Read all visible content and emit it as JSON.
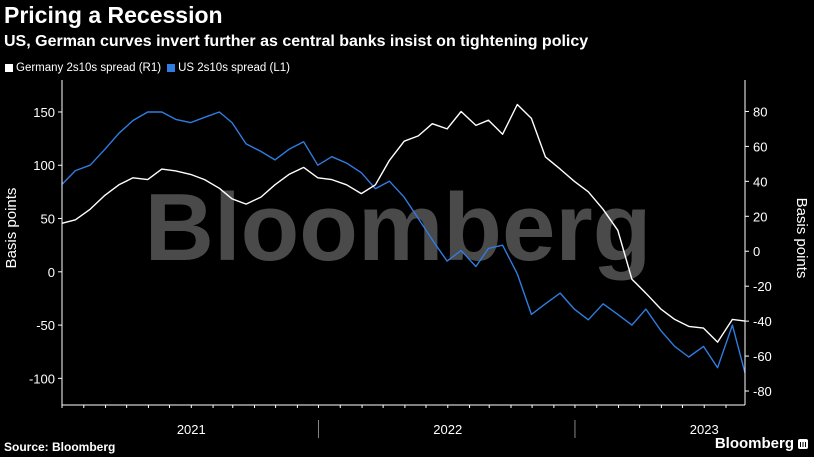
{
  "title": "Pricing a Recession",
  "subtitle": "US, German curves invert further as central banks insist on tightening policy",
  "source": "Source: Bloomberg",
  "brand": "Bloomberg",
  "watermark": "Bloomberg",
  "colors": {
    "germany": "#ffffff",
    "us": "#2f7de1",
    "background": "#000000",
    "watermark": "#4a4a4a"
  },
  "chart_data": {
    "type": "line",
    "left_axis": {
      "label": "Basis points",
      "range": [
        -125,
        180
      ],
      "ticks": [
        150,
        100,
        50,
        0,
        -50,
        -100
      ],
      "tick_labels": [
        "150",
        "100",
        "50",
        "0",
        "-50",
        "-100"
      ]
    },
    "right_axis": {
      "label": "Basis points",
      "range": [
        -88,
        98
      ],
      "ticks": [
        80,
        60,
        40,
        20,
        0,
        -20,
        -40,
        -60,
        -80
      ],
      "tick_labels": [
        "80",
        "60",
        "40",
        "20",
        "0",
        "-20",
        "-40",
        "-60",
        "-80"
      ]
    },
    "x_axis": {
      "range": [
        "2020-07-01",
        "2023-02-28"
      ],
      "year_labels": [
        {
          "label": "2021",
          "center": "2021-01-01"
        },
        {
          "label": "2022",
          "center": "2022-01-01"
        },
        {
          "label": "2023",
          "center": "2023-01-01"
        }
      ],
      "year_dividers": [
        "2021-07-01",
        "2022-07-01"
      ]
    },
    "grid": false,
    "legend_position": "top-left",
    "series": [
      {
        "name": "Germany 2s10s spread (R1)",
        "axis": "right",
        "x": [
          "2020-07-01",
          "2020-07-20",
          "2020-08-10",
          "2020-08-31",
          "2020-09-20",
          "2020-10-10",
          "2020-10-31",
          "2020-11-20",
          "2020-12-10",
          "2020-12-31",
          "2021-01-20",
          "2021-02-10",
          "2021-02-28",
          "2021-03-20",
          "2021-04-10",
          "2021-04-30",
          "2021-05-20",
          "2021-06-10",
          "2021-06-30",
          "2021-07-20",
          "2021-08-10",
          "2021-08-31",
          "2021-09-20",
          "2021-10-10",
          "2021-10-31",
          "2021-11-20",
          "2021-12-10",
          "2021-12-31",
          "2022-01-20",
          "2022-02-10",
          "2022-02-28",
          "2022-03-20",
          "2022-04-10",
          "2022-04-30",
          "2022-05-20",
          "2022-06-10",
          "2022-06-30",
          "2022-07-20",
          "2022-08-10",
          "2022-08-31",
          "2022-09-20",
          "2022-10-10",
          "2022-10-31",
          "2022-11-20",
          "2022-12-10",
          "2022-12-31",
          "2023-01-20",
          "2023-02-10",
          "2023-02-28"
        ],
        "values": [
          16,
          18,
          24,
          32,
          38,
          42,
          41,
          47,
          46,
          44,
          41,
          36,
          30,
          27,
          31,
          38,
          44,
          48,
          42,
          41,
          38,
          33,
          38,
          52,
          63,
          66,
          73,
          70,
          80,
          72,
          75,
          67,
          84,
          76,
          54,
          47,
          40,
          34,
          24,
          12,
          -16,
          -24,
          -33,
          -39,
          -43,
          -44,
          -52,
          -39,
          -40
        ]
      },
      {
        "name": "US 2s10s spread (L1)",
        "axis": "left",
        "x": [
          "2020-07-01",
          "2020-07-20",
          "2020-08-10",
          "2020-08-31",
          "2020-09-20",
          "2020-10-10",
          "2020-10-31",
          "2020-11-20",
          "2020-12-10",
          "2020-12-31",
          "2021-01-20",
          "2021-02-10",
          "2021-02-28",
          "2021-03-20",
          "2021-04-10",
          "2021-04-30",
          "2021-05-20",
          "2021-06-10",
          "2021-06-30",
          "2021-07-20",
          "2021-08-10",
          "2021-08-31",
          "2021-09-20",
          "2021-10-10",
          "2021-10-31",
          "2021-11-20",
          "2021-12-10",
          "2021-12-31",
          "2022-01-20",
          "2022-02-10",
          "2022-02-28",
          "2022-03-20",
          "2022-04-10",
          "2022-04-30",
          "2022-05-20",
          "2022-06-10",
          "2022-06-30",
          "2022-07-20",
          "2022-08-10",
          "2022-08-31",
          "2022-09-20",
          "2022-10-10",
          "2022-10-31",
          "2022-11-20",
          "2022-12-10",
          "2022-12-31",
          "2023-01-20",
          "2023-02-10",
          "2023-02-28"
        ],
        "values": [
          82,
          95,
          100,
          115,
          130,
          142,
          150,
          150,
          143,
          140,
          145,
          150,
          140,
          120,
          113,
          105,
          115,
          122,
          100,
          108,
          102,
          93,
          78,
          85,
          70,
          50,
          30,
          10,
          20,
          5,
          22,
          25,
          -2,
          -40,
          -30,
          -20,
          -35,
          -45,
          -30,
          -40,
          -50,
          -35,
          -55,
          -70,
          -80,
          -70,
          -90,
          -50,
          -95
        ]
      }
    ]
  }
}
